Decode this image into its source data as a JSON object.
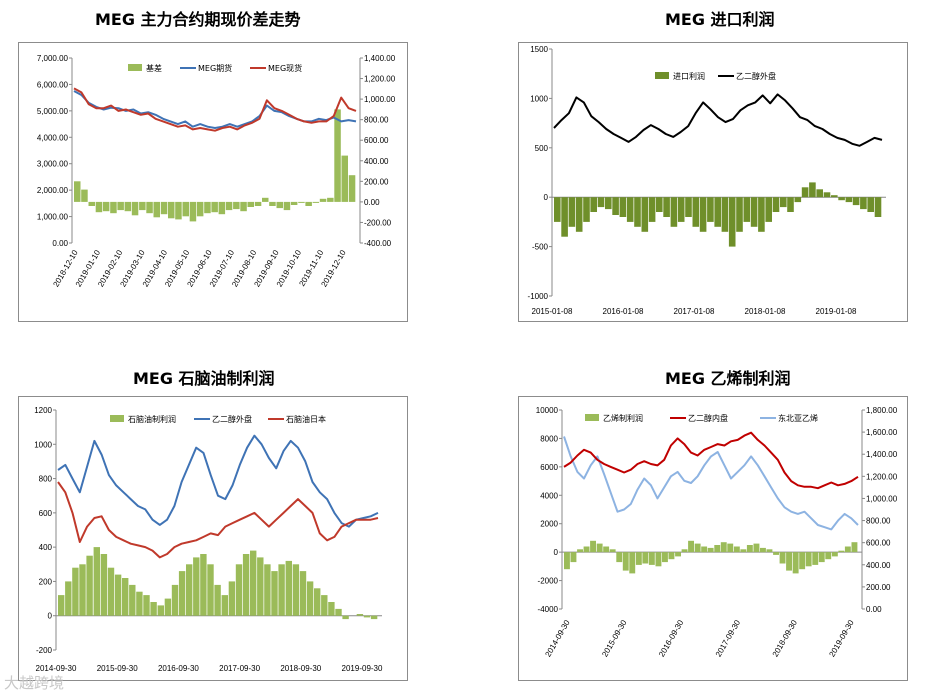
{
  "watermark": "大越跨境",
  "chart_data": [
    {
      "id": "c1",
      "type": "line",
      "title": "MEG 主力合约期现价差走势",
      "x_ticks": [
        "2018-12-10",
        "2019-01-10",
        "2019-02-10",
        "2019-03-10",
        "2019-04-10",
        "2019-05-10",
        "2019-06-10",
        "2019-07-10",
        "2019-08-10",
        "2019-09-10",
        "2019-10-10",
        "2019-11-10",
        "2019-12-10"
      ],
      "left_axis": {
        "ticks": [
          "0.00",
          "1,000.00",
          "2,000.00",
          "3,000.00",
          "4,000.00",
          "5,000.00",
          "6,000.00",
          "7,000.00"
        ],
        "ylim": [
          0,
          7000
        ]
      },
      "right_axis": {
        "ticks": [
          "-400.00",
          "-200.00",
          "0.00",
          "200.00",
          "400.00",
          "600.00",
          "800.00",
          "1,000.00",
          "1,200.00",
          "1,400.00"
        ],
        "ylim": [
          -400,
          1400
        ]
      },
      "legend": [
        "基差",
        "MEG期货",
        "MEG现货"
      ],
      "colors": {
        "basis": "#9bbb59",
        "futures": "#3f73b5",
        "spot": "#c0392b"
      },
      "series": [
        {
          "name": "MEG期货",
          "axis": "left",
          "values": [
            5750,
            5600,
            5300,
            5150,
            5050,
            5120,
            5100,
            5000,
            5050,
            4900,
            4950,
            4850,
            4700,
            4600,
            4500,
            4600,
            4400,
            4500,
            4400,
            4350,
            4400,
            4500,
            4400,
            4500,
            4600,
            4800,
            5200,
            5000,
            4950,
            4800,
            4700,
            4600,
            4600,
            4700,
            4650,
            4750,
            4600,
            4650,
            4600
          ]
        },
        {
          "name": "MEG现货",
          "axis": "left",
          "values": [
            5850,
            5700,
            5250,
            5100,
            5100,
            5200,
            5000,
            5050,
            4950,
            4850,
            4900,
            4700,
            4600,
            4500,
            4400,
            4450,
            4300,
            4350,
            4300,
            4250,
            4350,
            4400,
            4300,
            4450,
            4550,
            4700,
            5400,
            5100,
            5000,
            4850,
            4700,
            4600,
            4550,
            4600,
            4600,
            4800,
            5500,
            5100,
            5000
          ]
        },
        {
          "name": "基差",
          "axis": "right",
          "values": [
            200,
            120,
            -40,
            -100,
            -90,
            -110,
            -80,
            -90,
            -130,
            -80,
            -110,
            -150,
            -120,
            -160,
            -170,
            -140,
            -190,
            -140,
            -110,
            -100,
            -120,
            -80,
            -70,
            -90,
            -50,
            -40,
            40,
            -40,
            -60,
            -80,
            -30,
            -10,
            -40,
            -10,
            30,
            40,
            900,
            450,
            260
          ]
        }
      ]
    },
    {
      "id": "c2",
      "type": "line",
      "title": "MEG 进口利润",
      "x_ticks": [
        "2015-01-08",
        "2016-01-08",
        "2017-01-08",
        "2018-01-08",
        "2019-01-08"
      ],
      "y_axis": {
        "ticks": [
          "-1000",
          "-500",
          "0",
          "500",
          "1000",
          "1500"
        ],
        "ylim": [
          -1000,
          1500
        ]
      },
      "legend": [
        "进口利润",
        "乙二醇外盘"
      ],
      "colors": {
        "profit": "#6f8f2a",
        "price": "#000000"
      },
      "series": [
        {
          "name": "乙二醇外盘",
          "values": [
            700,
            780,
            850,
            1010,
            960,
            820,
            760,
            690,
            640,
            600,
            560,
            610,
            680,
            730,
            690,
            640,
            610,
            660,
            720,
            850,
            960,
            890,
            810,
            760,
            790,
            880,
            930,
            960,
            1030,
            950,
            1040,
            980,
            900,
            810,
            780,
            720,
            690,
            640,
            600,
            580,
            540,
            520,
            560,
            600,
            580
          ]
        },
        {
          "name": "进口利润",
          "values": [
            -250,
            -400,
            -300,
            -350,
            -250,
            -150,
            -100,
            -120,
            -180,
            -200,
            -250,
            -300,
            -350,
            -250,
            -150,
            -200,
            -300,
            -250,
            -200,
            -300,
            -350,
            -250,
            -300,
            -350,
            -500,
            -350,
            -250,
            -300,
            -350,
            -250,
            -150,
            -100,
            -150,
            -50,
            100,
            150,
            80,
            50,
            20,
            -30,
            -50,
            -80,
            -120,
            -150,
            -200
          ]
        }
      ]
    },
    {
      "id": "c3",
      "type": "line",
      "title": "MEG 石脑油制利润",
      "x_ticks": [
        "2014-09-30",
        "2015-09-30",
        "2016-09-30",
        "2017-09-30",
        "2018-09-30",
        "2019-09-30"
      ],
      "y_axis": {
        "ticks": [
          "-200",
          "0",
          "200",
          "400",
          "600",
          "800",
          "1000",
          "1200"
        ],
        "ylim": [
          -200,
          1200
        ]
      },
      "legend": [
        "石脑油制利润",
        "乙二醇外盘",
        "石脑油日本"
      ],
      "colors": {
        "profit": "#9bbb59",
        "meg": "#3f73b5",
        "naphtha": "#c0392b"
      },
      "series": [
        {
          "name": "乙二醇外盘",
          "values": [
            850,
            880,
            800,
            720,
            870,
            1020,
            940,
            820,
            760,
            720,
            680,
            640,
            620,
            560,
            530,
            560,
            640,
            780,
            880,
            980,
            950,
            820,
            700,
            680,
            760,
            880,
            980,
            1050,
            1000,
            920,
            860,
            960,
            1020,
            980,
            900,
            780,
            720,
            680,
            600,
            540,
            520,
            560,
            570,
            580,
            600
          ]
        },
        {
          "name": "石脑油日本",
          "values": [
            780,
            720,
            600,
            430,
            520,
            570,
            580,
            500,
            460,
            440,
            420,
            410,
            400,
            380,
            340,
            360,
            400,
            420,
            430,
            440,
            460,
            480,
            470,
            520,
            540,
            560,
            580,
            600,
            560,
            520,
            560,
            600,
            640,
            680,
            640,
            600,
            480,
            440,
            460,
            520,
            540,
            560,
            560,
            560,
            570
          ]
        },
        {
          "name": "石脑油制利润",
          "values": [
            120,
            200,
            280,
            300,
            350,
            400,
            360,
            280,
            240,
            220,
            180,
            140,
            120,
            80,
            60,
            100,
            180,
            260,
            300,
            340,
            360,
            300,
            180,
            120,
            200,
            300,
            360,
            380,
            340,
            300,
            260,
            300,
            320,
            300,
            260,
            200,
            160,
            120,
            80,
            40,
            -20,
            0,
            10,
            -10,
            -20
          ]
        }
      ]
    },
    {
      "id": "c4",
      "type": "line",
      "title": "MEG 乙烯制利润",
      "x_ticks": [
        "2014-09-30",
        "2015-09-30",
        "2016-09-30",
        "2017-09-30",
        "2018-09-30",
        "2019-09-30"
      ],
      "left_axis": {
        "ticks": [
          "-4000",
          "-2000",
          "0",
          "2000",
          "4000",
          "6000",
          "8000",
          "10000"
        ],
        "ylim": [
          -4000,
          10000
        ]
      },
      "right_axis": {
        "ticks": [
          "0.00",
          "200.00",
          "400.00",
          "600.00",
          "800.00",
          "1,000.00",
          "1,200.00",
          "1,400.00",
          "1,600.00",
          "1,800.00"
        ],
        "ylim": [
          0,
          1800
        ]
      },
      "legend": [
        "乙烯制利润",
        "乙二醇内盘",
        "东北亚乙烯"
      ],
      "colors": {
        "profit": "#9bbb59",
        "meg_cn": "#c00000",
        "ethylene": "#8db3e2"
      },
      "series": [
        {
          "name": "乙二醇内盘",
          "axis": "left",
          "values": [
            6000,
            6300,
            6800,
            7200,
            7000,
            6500,
            6200,
            6000,
            5800,
            5600,
            5800,
            6200,
            6400,
            6200,
            6100,
            6500,
            7500,
            8000,
            7600,
            7000,
            6800,
            7200,
            7400,
            7600,
            7500,
            7800,
            7900,
            8200,
            8400,
            7900,
            7500,
            7000,
            6500,
            5600,
            5000,
            4700,
            4600,
            4600,
            4500,
            4700,
            4900,
            4700,
            4800,
            5000,
            5300
          ]
        },
        {
          "name": "东北亚乙烯",
          "axis": "right",
          "values": [
            1560,
            1380,
            1240,
            1180,
            1300,
            1380,
            1220,
            1050,
            880,
            900,
            950,
            1080,
            1180,
            1120,
            1000,
            1100,
            1200,
            1240,
            1160,
            1140,
            1200,
            1300,
            1380,
            1420,
            1300,
            1180,
            1240,
            1300,
            1380,
            1300,
            1200,
            1100,
            1000,
            920,
            880,
            860,
            880,
            820,
            760,
            740,
            720,
            800,
            860,
            820,
            760
          ]
        },
        {
          "name": "乙烯制利润",
          "axis": "left",
          "values": [
            -1200,
            -700,
            200,
            400,
            800,
            600,
            400,
            200,
            -700,
            -1300,
            -1500,
            -900,
            -800,
            -900,
            -1000,
            -700,
            -500,
            -300,
            200,
            800,
            600,
            400,
            300,
            500,
            700,
            600,
            400,
            200,
            500,
            600,
            300,
            200,
            -200,
            -800,
            -1300,
            -1500,
            -1200,
            -1000,
            -900,
            -700,
            -500,
            -300,
            100,
            400,
            700
          ]
        }
      ]
    }
  ]
}
